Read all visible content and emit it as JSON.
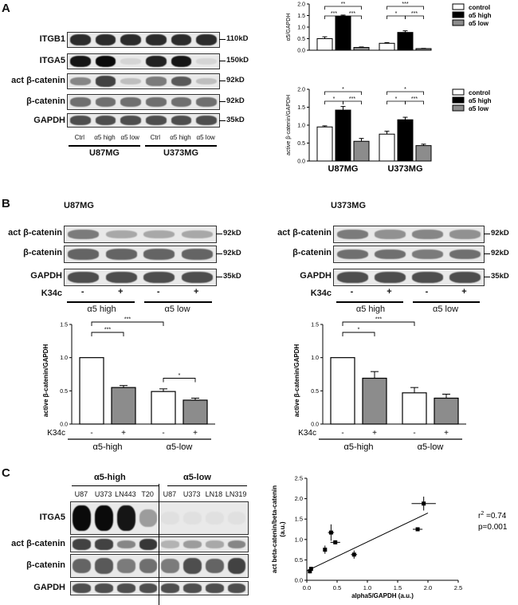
{
  "panels": {
    "A": {
      "letter": "A",
      "blot": {
        "rows": [
          {
            "label": "ITGB1",
            "kd": "110kD",
            "intensity": [
              0.85,
              0.85,
              0.85,
              0.85,
              0.85,
              0.85
            ]
          },
          {
            "label": "ITGA5",
            "kd": "150kD",
            "intensity": [
              0.95,
              1.0,
              0.1,
              0.9,
              0.95,
              0.1
            ]
          },
          {
            "label": "act β-catenin",
            "kd": "92kD",
            "intensity": [
              0.45,
              0.75,
              0.2,
              0.5,
              0.65,
              0.2
            ]
          },
          {
            "label": "β-catenin",
            "kd": "92kD",
            "intensity": [
              0.55,
              0.55,
              0.55,
              0.55,
              0.55,
              0.55
            ]
          },
          {
            "label": "GAPDH",
            "kd": "35kD",
            "intensity": [
              0.7,
              0.7,
              0.7,
              0.7,
              0.7,
              0.7
            ]
          }
        ],
        "lanes": [
          "Ctrl",
          "α5 high",
          "α5 low",
          "Ctrl",
          "α5 high",
          "α5 low"
        ],
        "groups": [
          "U87MG",
          "U373MG"
        ]
      }
    },
    "B": {
      "letter": "B",
      "left": {
        "title": "U87MG",
        "rows": [
          {
            "label": "act β-catenin",
            "kd": "92kD",
            "intensity": [
              0.5,
              0.3,
              0.3,
              0.3
            ]
          },
          {
            "label": "β-catenin",
            "kd": "92kD",
            "intensity": [
              0.6,
              0.6,
              0.6,
              0.6
            ]
          },
          {
            "label": "GAPDH",
            "kd": "35kD",
            "intensity": [
              0.7,
              0.7,
              0.7,
              0.7
            ]
          }
        ],
        "treatment_label": "K34c",
        "signs": [
          "-",
          "+",
          "-",
          "+"
        ],
        "groups": [
          "α5 high",
          "α5 low"
        ]
      },
      "right": {
        "title": "U373MG",
        "rows": [
          {
            "label": "act β-catenin",
            "kd": "92kD",
            "intensity": [
              0.5,
              0.4,
              0.45,
              0.4
            ]
          },
          {
            "label": "β-catenin",
            "kd": "92kD",
            "intensity": [
              0.55,
              0.55,
              0.5,
              0.55
            ]
          },
          {
            "label": "GAPDH",
            "kd": "35kD",
            "intensity": [
              0.7,
              0.7,
              0.7,
              0.7
            ]
          }
        ],
        "treatment_label": "K34c",
        "signs": [
          "-",
          "+",
          "-",
          "+"
        ],
        "groups": [
          "α5 high",
          "α5 low"
        ]
      }
    },
    "C": {
      "letter": "C",
      "blot": {
        "group_labels": [
          "α5-high",
          "α5-low"
        ],
        "lanes": [
          "U87",
          "U373",
          "LN443",
          "T20",
          "U87",
          "U373",
          "LN18",
          "LN319"
        ],
        "rows": [
          {
            "label": "ITGA5",
            "intensity": [
              1.0,
              1.0,
              0.95,
              0.35,
              0.05,
              0.05,
              0.05,
              0.05
            ]
          },
          {
            "label": "act β-catenin",
            "intensity": [
              0.75,
              0.75,
              0.45,
              0.8,
              0.25,
              0.35,
              0.3,
              0.45
            ]
          },
          {
            "label": "β-catenin",
            "intensity": [
              0.6,
              0.65,
              0.5,
              0.55,
              0.5,
              0.7,
              0.6,
              0.75
            ]
          },
          {
            "label": "GAPDH",
            "intensity": [
              0.7,
              0.7,
              0.7,
              0.7,
              0.7,
              0.7,
              0.7,
              0.7
            ]
          }
        ]
      }
    }
  },
  "chart_data": [
    {
      "id": "A-top",
      "type": "bar",
      "ylabel": "α5/GAPDH",
      "ylim": [
        0,
        2.0
      ],
      "yticks": [
        "0.0",
        "0.5",
        "1.0",
        "1.5",
        "2.0"
      ],
      "groups": [
        "U87MG",
        "U373MG"
      ],
      "series": [
        {
          "name": "control",
          "values": [
            0.5,
            0.3
          ],
          "errors": [
            0.08,
            0.03
          ],
          "color": "#ffffff"
        },
        {
          "name": "α5 high",
          "values": [
            1.47,
            0.77
          ],
          "errors": [
            0.05,
            0.07
          ],
          "color": "#000000"
        },
        {
          "name": "α5 low",
          "values": [
            0.12,
            0.07
          ],
          "errors": [
            0.02,
            0.01
          ],
          "color": "#8c8c8c"
        }
      ],
      "significance": [
        {
          "group": 0,
          "from": 0,
          "to": 2,
          "label": "**"
        },
        {
          "group": 0,
          "from": 0,
          "to": 1,
          "label": "***"
        },
        {
          "group": 0,
          "from": 1,
          "to": 2,
          "label": "***"
        },
        {
          "group": 1,
          "from": 0,
          "to": 2,
          "label": "***"
        },
        {
          "group": 1,
          "from": 0,
          "to": 1,
          "label": "*"
        },
        {
          "group": 1,
          "from": 1,
          "to": 2,
          "label": "***"
        }
      ]
    },
    {
      "id": "A-bottom",
      "type": "bar",
      "ylabel": "active β-catenin/GAPDH",
      "ylim": [
        0,
        2.0
      ],
      "yticks": [
        "0.0",
        "0.5",
        "1.0",
        "1.5",
        "2.0"
      ],
      "groups": [
        "U87MG",
        "U373MG"
      ],
      "series": [
        {
          "name": "control",
          "values": [
            0.95,
            0.75
          ],
          "errors": [
            0.03,
            0.08
          ],
          "color": "#ffffff"
        },
        {
          "name": "α5 high",
          "values": [
            1.42,
            1.15
          ],
          "errors": [
            0.1,
            0.07
          ],
          "color": "#000000"
        },
        {
          "name": "α5 low",
          "values": [
            0.55,
            0.43
          ],
          "errors": [
            0.08,
            0.04
          ],
          "color": "#8c8c8c"
        }
      ],
      "significance": [
        {
          "group": 0,
          "from": 0,
          "to": 2,
          "label": "*"
        },
        {
          "group": 0,
          "from": 0,
          "to": 1,
          "label": "*"
        },
        {
          "group": 0,
          "from": 1,
          "to": 2,
          "label": "***"
        },
        {
          "group": 1,
          "from": 0,
          "to": 2,
          "label": "*"
        },
        {
          "group": 1,
          "from": 0,
          "to": 1,
          "label": "*"
        },
        {
          "group": 1,
          "from": 1,
          "to": 2,
          "label": "***"
        }
      ]
    },
    {
      "id": "B-left",
      "type": "bar",
      "ylabel": "active β-catenin/GAPDH",
      "ylim": [
        0,
        1.5
      ],
      "yticks": [
        "0.0",
        "0.5",
        "1.0",
        "1.5"
      ],
      "xlabel_row": "K34c",
      "signs": [
        "-",
        "+",
        "-",
        "+"
      ],
      "group_labels": [
        "α5-high",
        "α5-low"
      ],
      "values": [
        1.0,
        0.55,
        0.49,
        0.36
      ],
      "errors": [
        0.0,
        0.03,
        0.04,
        0.03
      ],
      "colors": [
        "#ffffff",
        "#8c8c8c",
        "#ffffff",
        "#8c8c8c"
      ],
      "significance": [
        {
          "from": 0,
          "to": 1,
          "label": "***"
        },
        {
          "from": 0,
          "to": 2,
          "label": "***"
        },
        {
          "from": 2,
          "to": 3,
          "label": "*"
        }
      ]
    },
    {
      "id": "B-right",
      "type": "bar",
      "ylabel": "active β-catenin/GAPDH",
      "ylim": [
        0,
        1.5
      ],
      "yticks": [
        "0.0",
        "0.5",
        "1.0",
        "1.5"
      ],
      "xlabel_row": "K34c",
      "signs": [
        "-",
        "+",
        "-",
        "+"
      ],
      "group_labels": [
        "α5-high",
        "α5-low"
      ],
      "values": [
        1.0,
        0.69,
        0.47,
        0.39
      ],
      "errors": [
        0.0,
        0.1,
        0.08,
        0.06
      ],
      "colors": [
        "#ffffff",
        "#8c8c8c",
        "#ffffff",
        "#8c8c8c"
      ],
      "significance": [
        {
          "from": 0,
          "to": 1,
          "label": "*"
        },
        {
          "from": 0,
          "to": 2,
          "label": "***"
        }
      ]
    },
    {
      "id": "C-scatter",
      "type": "scatter",
      "xlabel": "alpha5/GAPDH (a.u.)",
      "ylabel": "act beta-catenin/beta-catenin\n(a.u.)",
      "xlim": [
        0,
        2.5
      ],
      "ylim": [
        0,
        2.5
      ],
      "xticks": [
        "0.0",
        "0.5",
        "1.0",
        "1.5",
        "2.0",
        "2.5"
      ],
      "yticks": [
        "0.0",
        "0.5",
        "1.0",
        "1.5",
        "2.0",
        "2.5"
      ],
      "points": [
        {
          "x": 0.05,
          "y": 0.22,
          "xe": 0.02,
          "ye": 0.05
        },
        {
          "x": 0.07,
          "y": 0.28,
          "xe": 0.02,
          "ye": 0.05
        },
        {
          "x": 0.3,
          "y": 0.75,
          "xe": 0.03,
          "ye": 0.1
        },
        {
          "x": 0.4,
          "y": 1.17,
          "xe": 0.05,
          "ye": 0.2
        },
        {
          "x": 0.47,
          "y": 0.93,
          "xe": 0.08,
          "ye": 0.05
        },
        {
          "x": 0.78,
          "y": 0.63,
          "xe": 0.05,
          "ye": 0.1
        },
        {
          "x": 1.83,
          "y": 1.25,
          "xe": 0.08,
          "ye": 0.03
        },
        {
          "x": 1.93,
          "y": 1.88,
          "xe": 0.2,
          "ye": 0.17
        }
      ],
      "fit": {
        "x0": 0.0,
        "y0": 0.23,
        "x1": 2.0,
        "y1": 1.65
      },
      "annotation": {
        "r2_label": "r",
        "r2_sup": "2",
        "r2_value": " =0.74",
        "p": "p=0.001"
      }
    }
  ]
}
